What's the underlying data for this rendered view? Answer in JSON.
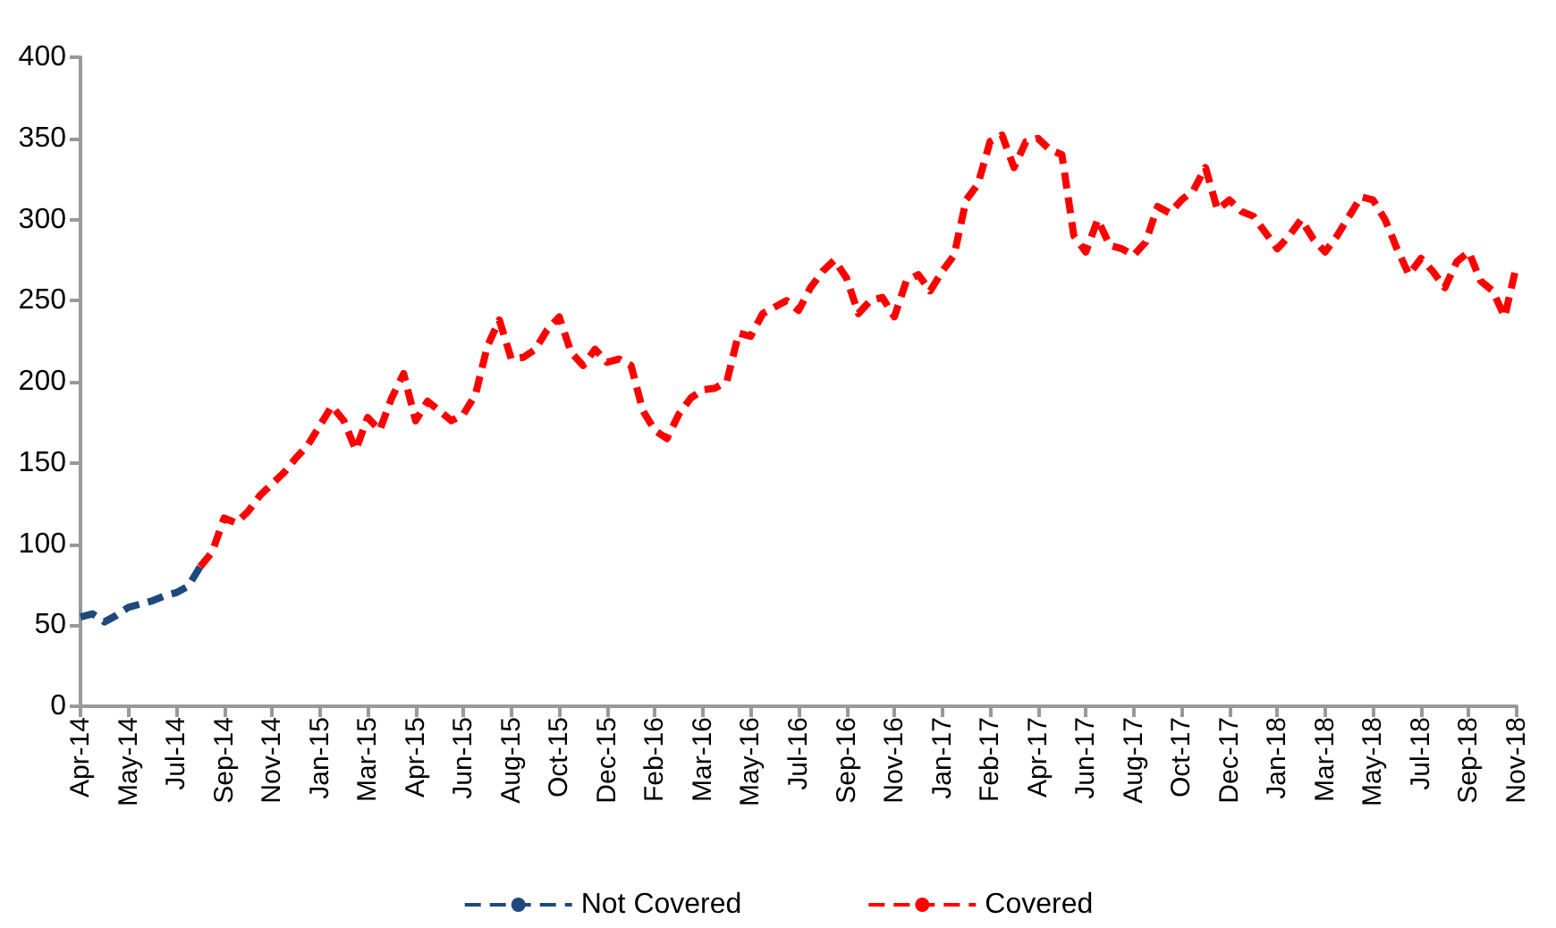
{
  "chart_data": {
    "type": "line",
    "categories": [
      "Apr-14",
      null,
      null,
      null,
      "May-14",
      null,
      null,
      null,
      "Jul-14",
      null,
      null,
      null,
      "Sep-14",
      null,
      null,
      null,
      "Nov-14",
      null,
      null,
      null,
      "Jan-15",
      null,
      null,
      null,
      "Mar-15",
      null,
      null,
      null,
      "Apr-15",
      null,
      null,
      null,
      "Jun-15",
      null,
      null,
      null,
      "Aug-15",
      null,
      null,
      null,
      "Oct-15",
      null,
      null,
      null,
      "Dec-15",
      null,
      null,
      null,
      "Feb-16",
      null,
      null,
      null,
      "Mar-16",
      null,
      null,
      null,
      "May-16",
      null,
      null,
      null,
      "Jul-16",
      null,
      null,
      null,
      "Sep-16",
      null,
      null,
      null,
      "Nov-16",
      null,
      null,
      null,
      "Jan-17",
      null,
      null,
      null,
      "Feb-17",
      null,
      null,
      null,
      "Apr-17",
      null,
      null,
      null,
      "Jun-17",
      null,
      null,
      null,
      "Aug-17",
      null,
      null,
      null,
      "Oct-17",
      null,
      null,
      null,
      "Dec-17",
      null,
      null,
      null,
      "Jan-18",
      null,
      null,
      null,
      "Mar-18",
      null,
      null,
      null,
      "May-18",
      null,
      null,
      null,
      "Jul-18",
      null,
      null,
      null,
      "Sep-18",
      null,
      null,
      null,
      "Nov-18"
    ],
    "series": [
      {
        "name": "Not Covered",
        "color": "#1f497d",
        "values": [
          55,
          57,
          52,
          56,
          61,
          63,
          65,
          68,
          70,
          74,
          86,
          null,
          null,
          null,
          null,
          null,
          null,
          null,
          null,
          null,
          null,
          null,
          null,
          null,
          null,
          null,
          null,
          null,
          null,
          null,
          null,
          null,
          null,
          null,
          null,
          null,
          null,
          null,
          null,
          null,
          null,
          null,
          null,
          null,
          null,
          null,
          null,
          null,
          null,
          null,
          null,
          null,
          null,
          null,
          null,
          null,
          null,
          null,
          null,
          null,
          null,
          null,
          null,
          null,
          null,
          null,
          null,
          null,
          null,
          null,
          null,
          null,
          null,
          null,
          null,
          null,
          null,
          null,
          null,
          null,
          null,
          null,
          null,
          null,
          null,
          null,
          null,
          null,
          null,
          null,
          null,
          null,
          null,
          null,
          null,
          null,
          null,
          null,
          null,
          null,
          null,
          null,
          null,
          null,
          null,
          null,
          null,
          null,
          null,
          null,
          null,
          null,
          null,
          null,
          null,
          null,
          null,
          null,
          null,
          null,
          null
        ]
      },
      {
        "name": "Covered",
        "color": "#ff0000",
        "values": [
          null,
          null,
          null,
          null,
          null,
          null,
          null,
          null,
          null,
          null,
          86,
          95,
          116,
          113,
          120,
          130,
          137,
          144,
          153,
          161,
          173,
          185,
          176,
          158,
          178,
          170,
          190,
          205,
          176,
          188,
          182,
          176,
          180,
          192,
          222,
          238,
          214,
          215,
          220,
          232,
          240,
          218,
          210,
          220,
          212,
          214,
          210,
          182,
          170,
          165,
          180,
          190,
          195,
          196,
          200,
          230,
          228,
          242,
          246,
          250,
          244,
          258,
          268,
          275,
          264,
          242,
          250,
          252,
          240,
          262,
          266,
          256,
          268,
          278,
          312,
          322,
          348,
          352,
          332,
          348,
          350,
          343,
          340,
          290,
          280,
          300,
          284,
          282,
          278,
          286,
          308,
          304,
          312,
          318,
          332,
          306,
          312,
          305,
          302,
          292,
          282,
          290,
          300,
          288,
          280,
          290,
          302,
          314,
          312,
          300,
          282,
          266,
          276,
          268,
          258,
          274,
          280,
          262,
          256,
          240,
          272
        ]
      }
    ],
    "ylim": [
      0,
      400
    ],
    "yticks": [
      0,
      50,
      100,
      150,
      200,
      250,
      300,
      350,
      400
    ],
    "grid": false,
    "legend": "bottom",
    "marker": "none",
    "line_style": "dashed"
  }
}
